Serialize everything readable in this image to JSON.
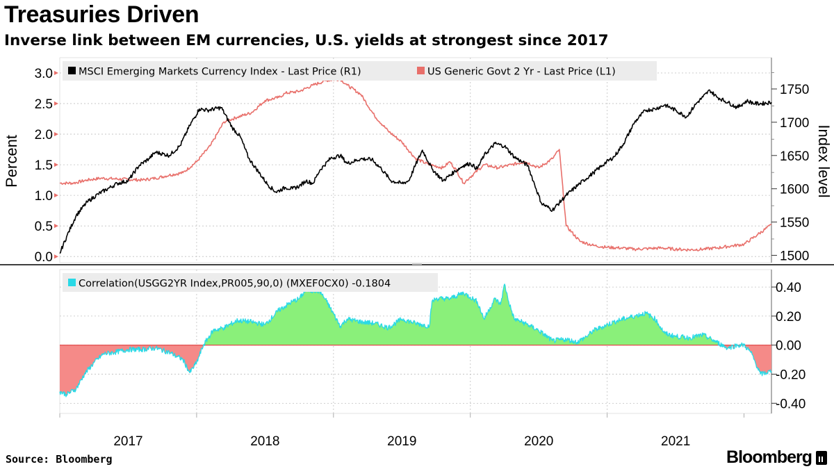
{
  "header": {
    "title": "Treasuries Driven",
    "subtitle": "Inverse link between EM currencies, U.S. yields at strongest since 2017"
  },
  "footer": {
    "source": "Source: Bloomberg",
    "brand": "Bloomberg"
  },
  "colors": {
    "msci": "#000000",
    "yield": "#e86f6a",
    "corr_line": "#29d9e6",
    "corr_pos": "#8af07a",
    "corr_neg": "#f58a88",
    "grid": "#bfbfbf"
  },
  "chart_data": [
    {
      "type": "line",
      "title": "Treasuries Driven",
      "x_axis": {
        "ticks": [
          "2017",
          "2018",
          "2019",
          "2020",
          "2021"
        ],
        "range": [
          2016.5,
          2021.7
        ]
      },
      "left_axis": {
        "label": "Percent",
        "range": [
          -0.1,
          3.25
        ],
        "ticks": [
          "0.0",
          "0.5",
          "1.0",
          "1.5",
          "2.0",
          "2.5",
          "3.0"
        ]
      },
      "right_axis": {
        "label": "Index level",
        "range": [
          1489,
          1797
        ],
        "ticks": [
          "1500",
          "1550",
          "1600",
          "1650",
          "1700",
          "1750"
        ]
      },
      "legend": [
        "MSCI Emerging Markets Currency Index - Last Price (R1)",
        "US Generic Govt 2 Yr - Last Price (L1)"
      ],
      "series": [
        {
          "name": "MSCI Emerging Markets Currency Index - Last Price (R1)",
          "axis": "right",
          "x": [
            2016.5,
            2016.55,
            2016.62,
            2016.7,
            2016.78,
            2016.85,
            2016.92,
            2017.0,
            2017.08,
            2017.15,
            2017.2,
            2017.3,
            2017.38,
            2017.45,
            2017.52,
            2017.58,
            2017.68,
            2017.76,
            2017.82,
            2017.88,
            2017.95,
            2018.02,
            2018.08,
            2018.15,
            2018.2,
            2018.25,
            2018.3,
            2018.35,
            2018.4,
            2018.48,
            2018.55,
            2018.6,
            2018.7,
            2018.78,
            2018.85,
            2018.92,
            2019.0,
            2019.05,
            2019.1,
            2019.15,
            2019.22,
            2019.3,
            2019.38,
            2019.45,
            2019.5,
            2019.55,
            2019.6,
            2019.68,
            2019.75,
            2019.82,
            2019.88,
            2019.92,
            2019.97,
            2020.02,
            2020.1,
            2020.2,
            2020.3,
            2020.4,
            2020.48,
            2020.55,
            2020.62,
            2020.7,
            2020.78,
            2020.85,
            2020.92,
            2021.0,
            2021.08,
            2021.15,
            2021.2,
            2021.25,
            2021.3,
            2021.38,
            2021.45,
            2021.52,
            2021.58,
            2021.63,
            2021.7
          ],
          "values": [
            1503,
            1528,
            1560,
            1580,
            1592,
            1600,
            1608,
            1612,
            1635,
            1645,
            1655,
            1650,
            1665,
            1695,
            1720,
            1718,
            1722,
            1692,
            1678,
            1646,
            1626,
            1606,
            1595,
            1602,
            1600,
            1604,
            1612,
            1608,
            1628,
            1646,
            1650,
            1638,
            1645,
            1644,
            1630,
            1612,
            1608,
            1612,
            1636,
            1658,
            1630,
            1612,
            1625,
            1635,
            1638,
            1630,
            1650,
            1668,
            1664,
            1648,
            1640,
            1635,
            1606,
            1578,
            1568,
            1590,
            1608,
            1624,
            1638,
            1648,
            1668,
            1700,
            1718,
            1720,
            1726,
            1718,
            1708,
            1728,
            1738,
            1748,
            1738,
            1730,
            1722,
            1732,
            1728,
            1728,
            1730
          ]
        },
        {
          "name": "US Generic Govt 2 Yr - Last Price (L1)",
          "axis": "left",
          "x": [
            2016.5,
            2016.6,
            2016.7,
            2016.8,
            2016.9,
            2017.0,
            2017.1,
            2017.2,
            2017.3,
            2017.4,
            2017.5,
            2017.6,
            2017.7,
            2017.8,
            2017.9,
            2018.0,
            2018.1,
            2018.15,
            2018.25,
            2018.35,
            2018.45,
            2018.55,
            2018.6,
            2018.7,
            2018.8,
            2018.9,
            2019.0,
            2019.1,
            2019.2,
            2019.3,
            2019.35,
            2019.4,
            2019.45,
            2019.5,
            2019.6,
            2019.7,
            2019.8,
            2019.9,
            2020.0,
            2020.1,
            2020.15,
            2020.2,
            2020.3,
            2020.4,
            2020.5,
            2020.6,
            2020.7,
            2020.8,
            2020.9,
            2021.0,
            2021.1,
            2021.2,
            2021.3,
            2021.4,
            2021.5,
            2021.6,
            2021.7
          ],
          "values": [
            1.2,
            1.2,
            1.25,
            1.28,
            1.27,
            1.26,
            1.25,
            1.28,
            1.33,
            1.37,
            1.55,
            1.81,
            2.2,
            2.28,
            2.35,
            2.55,
            2.6,
            2.67,
            2.7,
            2.8,
            2.88,
            2.9,
            2.8,
            2.65,
            2.3,
            2.05,
            1.87,
            1.6,
            1.5,
            1.45,
            1.55,
            1.4,
            1.2,
            1.3,
            1.5,
            1.45,
            1.5,
            1.55,
            1.45,
            1.6,
            1.75,
            0.5,
            0.25,
            0.18,
            0.15,
            0.14,
            0.12,
            0.13,
            0.14,
            0.12,
            0.11,
            0.12,
            0.14,
            0.17,
            0.2,
            0.36,
            0.52
          ]
        }
      ]
    },
    {
      "type": "area",
      "legend": [
        "Correlation(USGG2YR Index,PR005,90,0) (MXEF0CX0) -0.1804"
      ],
      "y_axis": {
        "range": [
          -0.47,
          0.52
        ],
        "ticks": [
          "0.40",
          "0.20",
          "0.00",
          "-0.20",
          "-0.40"
        ]
      },
      "series": [
        {
          "name": "Correlation(USGG2YR Index,PR005,90,0) (MXEF0CX0)",
          "last_value": -0.1804,
          "x": [
            2016.5,
            2016.55,
            2016.62,
            2016.68,
            2016.75,
            2016.82,
            2016.9,
            2017.0,
            2017.1,
            2017.2,
            2017.3,
            2017.4,
            2017.45,
            2017.5,
            2017.55,
            2017.62,
            2017.7,
            2017.8,
            2017.9,
            2018.0,
            2018.1,
            2018.2,
            2018.25,
            2018.3,
            2018.4,
            2018.45,
            2018.55,
            2018.6,
            2018.7,
            2018.8,
            2018.9,
            2019.0,
            2019.1,
            2019.2,
            2019.22,
            2019.25,
            2019.35,
            2019.45,
            2019.5,
            2019.55,
            2019.6,
            2019.68,
            2019.72,
            2019.75,
            2019.78,
            2019.82,
            2019.85,
            2019.9,
            2020.0,
            2020.1,
            2020.2,
            2020.28,
            2020.35,
            2020.4,
            2020.45,
            2020.55,
            2020.62,
            2020.7,
            2020.78,
            2020.85,
            2020.92,
            2021.0,
            2021.1,
            2021.2,
            2021.3,
            2021.38,
            2021.45,
            2021.5,
            2021.55,
            2021.62,
            2021.7
          ],
          "values": [
            -0.32,
            -0.34,
            -0.3,
            -0.2,
            -0.12,
            -0.06,
            -0.05,
            -0.03,
            -0.03,
            -0.02,
            -0.05,
            -0.1,
            -0.19,
            -0.12,
            0.0,
            0.1,
            0.12,
            0.17,
            0.16,
            0.14,
            0.24,
            0.3,
            0.32,
            0.38,
            0.37,
            0.3,
            0.13,
            0.18,
            0.16,
            0.15,
            0.12,
            0.18,
            0.15,
            0.13,
            0.3,
            0.32,
            0.32,
            0.36,
            0.33,
            0.3,
            0.18,
            0.32,
            0.28,
            0.42,
            0.3,
            0.18,
            0.17,
            0.15,
            0.1,
            0.03,
            0.04,
            0.02,
            0.06,
            0.1,
            0.12,
            0.16,
            0.18,
            0.2,
            0.22,
            0.18,
            0.08,
            0.06,
            0.05,
            0.07,
            0.02,
            -0.02,
            0.0,
            0.0,
            -0.05,
            -0.2,
            -0.18
          ]
        }
      ]
    }
  ]
}
